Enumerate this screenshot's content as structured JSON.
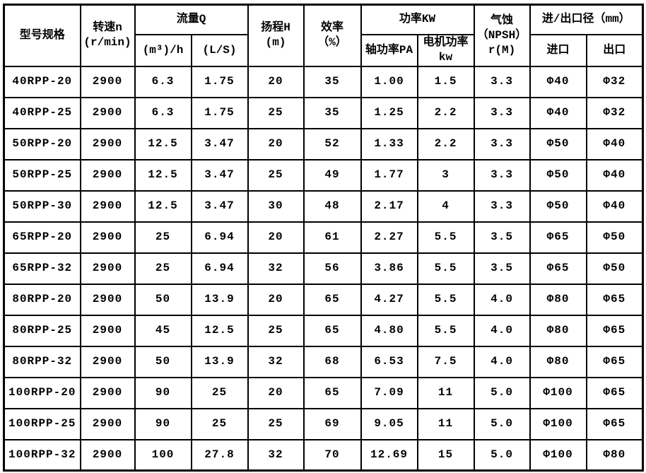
{
  "colors": {
    "border": "#000000",
    "text": "#000000",
    "background": "#ffffff"
  },
  "table": {
    "header": {
      "model": "型号规格",
      "speed": [
        "转速n",
        "(r/min)"
      ],
      "flow_group": "流量Q",
      "flow_m3h": "(m³)/h",
      "flow_ls": "(L/S)",
      "head": [
        "扬程H",
        "(m)"
      ],
      "efficiency": [
        "效率",
        "（%）"
      ],
      "power_group": "功率KW",
      "shaft_power": "轴功率PA",
      "motor_power": [
        "电机功率",
        "kw"
      ],
      "npsh": [
        "气蚀",
        "（NPSH）",
        "r(M)"
      ],
      "io_group": "进/出口径（mm）",
      "inlet": "进口",
      "outlet": "出口"
    },
    "rows": [
      [
        "40RPP-20",
        "2900",
        "6.3",
        "1.75",
        "20",
        "35",
        "1.00",
        "1.5",
        "3.3",
        "Φ40",
        "Φ32"
      ],
      [
        "40RPP-25",
        "2900",
        "6.3",
        "1.75",
        "25",
        "35",
        "1.25",
        "2.2",
        "3.3",
        "Φ40",
        "Φ32"
      ],
      [
        "50RPP-20",
        "2900",
        "12.5",
        "3.47",
        "20",
        "52",
        "1.33",
        "2.2",
        "3.3",
        "Φ50",
        "Φ40"
      ],
      [
        "50RPP-25",
        "2900",
        "12.5",
        "3.47",
        "25",
        "49",
        "1.77",
        "3",
        "3.3",
        "Φ50",
        "Φ40"
      ],
      [
        "50RPP-30",
        "2900",
        "12.5",
        "3.47",
        "30",
        "48",
        "2.17",
        "4",
        "3.3",
        "Φ50",
        "Φ40"
      ],
      [
        "65RPP-20",
        "2900",
        "25",
        "6.94",
        "20",
        "61",
        "2.27",
        "5.5",
        "3.5",
        "Φ65",
        "Φ50"
      ],
      [
        "65RPP-32",
        "2900",
        "25",
        "6.94",
        "32",
        "56",
        "3.86",
        "5.5",
        "3.5",
        "Φ65",
        "Φ50"
      ],
      [
        "80RPP-20",
        "2900",
        "50",
        "13.9",
        "20",
        "65",
        "4.27",
        "5.5",
        "4.0",
        "Φ80",
        "Φ65"
      ],
      [
        "80RPP-25",
        "2900",
        "45",
        "12.5",
        "25",
        "65",
        "4.80",
        "5.5",
        "4.0",
        "Φ80",
        "Φ65"
      ],
      [
        "80RPP-32",
        "2900",
        "50",
        "13.9",
        "32",
        "68",
        "6.53",
        "7.5",
        "4.0",
        "Φ80",
        "Φ65"
      ],
      [
        "100RPP-20",
        "2900",
        "90",
        "25",
        "20",
        "65",
        "7.09",
        "11",
        "5.0",
        "Φ100",
        "Φ65"
      ],
      [
        "100RPP-25",
        "2900",
        "90",
        "25",
        "25",
        "69",
        "9.05",
        "11",
        "5.0",
        "Φ100",
        "Φ65"
      ],
      [
        "100RPP-32",
        "2900",
        "100",
        "27.8",
        "32",
        "70",
        "12.69",
        "15",
        "5.0",
        "Φ100",
        "Φ80"
      ]
    ]
  }
}
